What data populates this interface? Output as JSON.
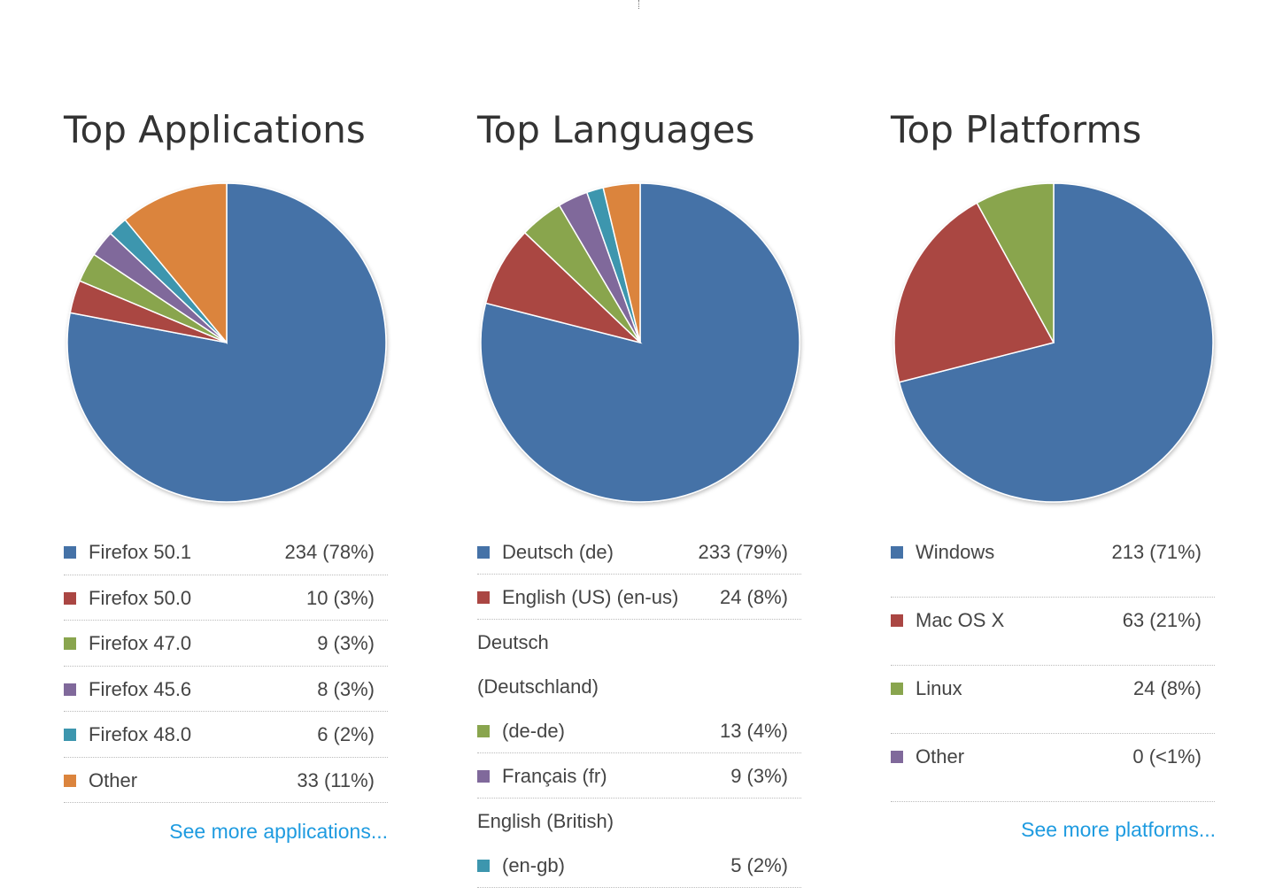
{
  "colors": [
    "#4572A7",
    "#AA4643",
    "#89A54E",
    "#80699B",
    "#3D96AE",
    "#DB843D"
  ],
  "chart_data": [
    {
      "type": "pie",
      "title": "Top Applications",
      "slices": [
        {
          "label": "Firefox 50.1",
          "value": 234,
          "display": "234 (78%)"
        },
        {
          "label": "Firefox 50.0",
          "value": 10,
          "display": "10 (3%)"
        },
        {
          "label": "Firefox 47.0",
          "value": 9,
          "display": "9 (3%)"
        },
        {
          "label": "Firefox 45.6",
          "value": 8,
          "display": "8 (3%)"
        },
        {
          "label": "Firefox 48.0",
          "value": 6,
          "display": "6 (2%)"
        },
        {
          "label": "Other",
          "value": 33,
          "display": "33 (11%)"
        }
      ],
      "link": "See more applications..."
    },
    {
      "type": "pie",
      "title": "Top Languages",
      "slices": [
        {
          "label": "Deutsch (de)",
          "value": 233,
          "display": "233 (79%)"
        },
        {
          "label": "English (US) (en-us)",
          "value": 24,
          "display": "24 (8%)"
        },
        {
          "pre": [
            "Deutsch",
            "(Deutschland)"
          ],
          "label": "(de-de)",
          "value": 13,
          "display": "13 (4%)"
        },
        {
          "label": "Français (fr)",
          "value": 9,
          "display": "9 (3%)"
        },
        {
          "pre": [
            "English (British)"
          ],
          "label": "(en-gb)",
          "value": 5,
          "display": "5 (2%)"
        },
        {
          "value": 11,
          "unlabeled": true
        }
      ]
    },
    {
      "type": "pie",
      "title": "Top Platforms",
      "slices": [
        {
          "label": "Windows",
          "value": 213,
          "display": "213 (71%)"
        },
        {
          "label": "Mac OS X",
          "value": 63,
          "display": "63 (21%)"
        },
        {
          "label": "Linux",
          "value": 24,
          "display": "24 (8%)"
        },
        {
          "label": "Other",
          "value": 0,
          "display": "0 (<1%)"
        }
      ],
      "link": "See more platforms..."
    }
  ]
}
